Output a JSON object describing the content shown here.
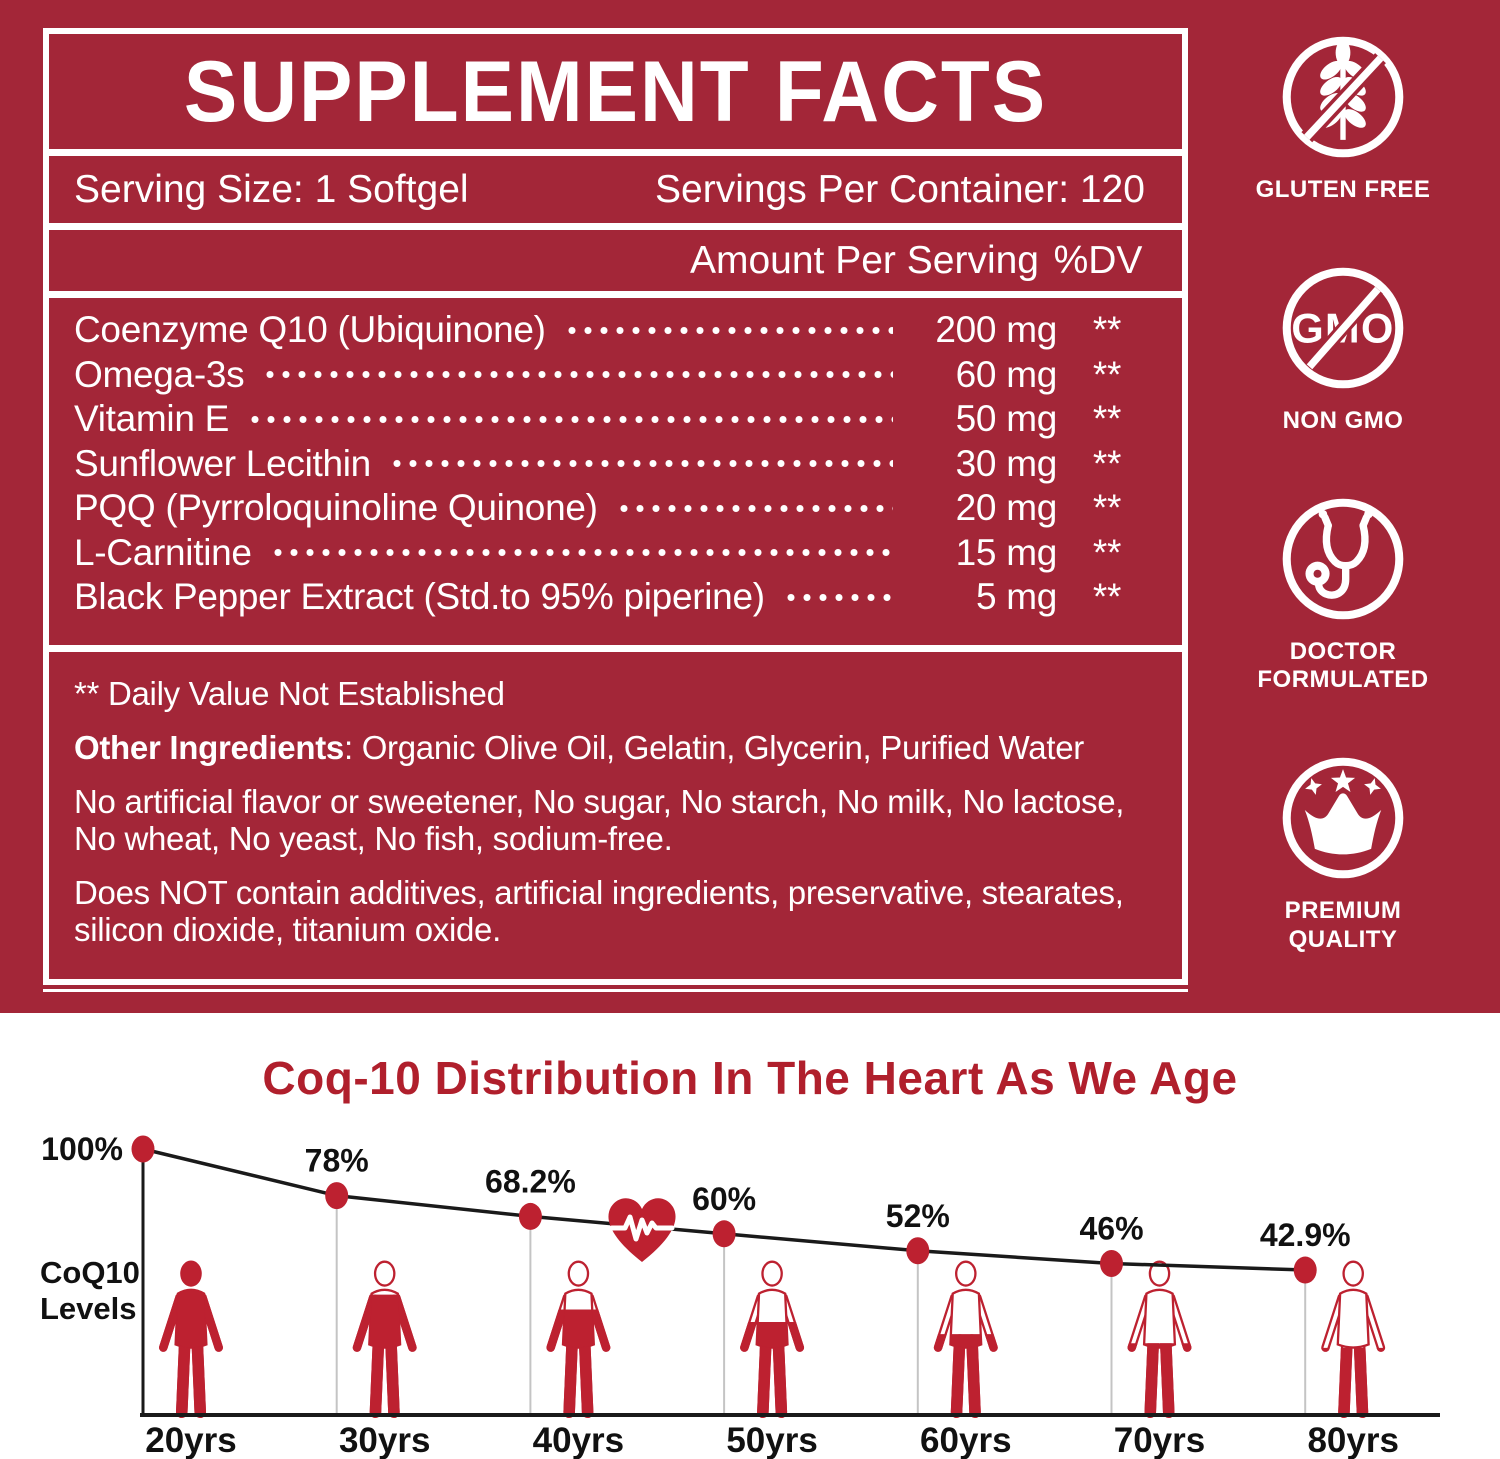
{
  "panel": {
    "title": "SUPPLEMENT FACTS",
    "serving_size": "Serving Size: 1 Softgel",
    "servings_per_container": "Servings Per Container: 120",
    "amount_header": "Amount Per Serving",
    "dv_header": "%DV",
    "ingredients": [
      {
        "name": "Coenzyme Q10 (Ubiquinone)",
        "amount": "200 mg",
        "dv": "**"
      },
      {
        "name": "Omega-3s",
        "amount": "60 mg",
        "dv": "**"
      },
      {
        "name": "Vitamin E",
        "amount": "50 mg",
        "dv": "**"
      },
      {
        "name": "Sunflower Lecithin",
        "amount": "30 mg",
        "dv": "**"
      },
      {
        "name": "PQQ (Pyrroloquinoline Quinone)",
        "amount": "20 mg",
        "dv": "**"
      },
      {
        "name": "L-Carnitine",
        "amount": "15 mg",
        "dv": "**"
      },
      {
        "name": "Black Pepper Extract (Std.to 95% piperine)",
        "amount": "5 mg",
        "dv": "**"
      }
    ],
    "footnotes": {
      "daily_value": "** Daily Value Not Established",
      "other_ingredients_label": "Other Ingredients",
      "other_ingredients_text": ": Organic Olive Oil, Gelatin, Glycerin, Purified Water",
      "no_artificial": "No artificial flavor or sweetener, No sugar, No starch, No milk, No lactose, No wheat, No yeast, No fish, sodium-free.",
      "does_not_contain": "Does NOT contain additives, artificial ingredients, preservative, stearates, silicon dioxide, titanium oxide."
    },
    "colors": {
      "background": "#a32638",
      "text": "#ffffff"
    }
  },
  "badges": [
    {
      "label": "GLUTEN FREE",
      "icon": "wheat-crossed"
    },
    {
      "label": "NON GMO",
      "icon": "gmo-crossed",
      "icon_text": "GMO"
    },
    {
      "label": "DOCTOR FORMULATED",
      "icon": "stethoscope"
    },
    {
      "label": "PREMIUM QUALITY",
      "icon": "crown-stars"
    }
  ],
  "chart_data": {
    "type": "line",
    "title": "Coq-10 Distribution In The Heart As We Age",
    "ylabel": "CoQ10 Levels",
    "xlabel": "",
    "categories": [
      "20yrs",
      "30yrs",
      "40yrs",
      "50yrs",
      "60yrs",
      "70yrs",
      "80yrs"
    ],
    "values": [
      100,
      78,
      68.2,
      60,
      52,
      46,
      42.9
    ],
    "point_labels": [
      "100%",
      "78%",
      "68.2%",
      "60%",
      "52%",
      "46%",
      "42.9%"
    ],
    "ylim": [
      0,
      100
    ],
    "grid": false,
    "legend": false,
    "annotations": [
      "heart-pulse-icon between 40yrs and 50yrs"
    ],
    "colors": {
      "accent": "#bd2130",
      "line": "#1a1a1a",
      "title": "#b01f2c",
      "guide": "#c4c4c4"
    }
  }
}
